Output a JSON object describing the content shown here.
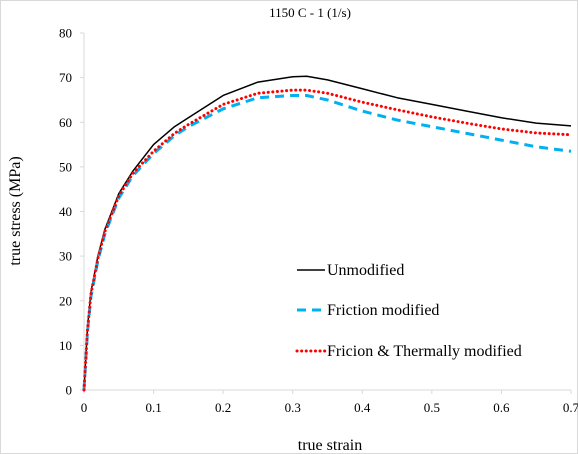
{
  "chart_data": {
    "type": "line",
    "title": "1150 C - 1 (1/s)",
    "xlabel": "true strain",
    "ylabel": "true stress (MPa)",
    "xlim": [
      0,
      0.7
    ],
    "ylim": [
      0,
      80
    ],
    "x_ticks": [
      "0",
      "0.1",
      "0.2",
      "0.3",
      "0.4",
      "0.5",
      "0.6",
      "0.7"
    ],
    "y_ticks": [
      "0",
      "10",
      "20",
      "30",
      "40",
      "50",
      "60",
      "70",
      "80"
    ],
    "grid": false,
    "legend_position": "center-right",
    "series": [
      {
        "name": "Unmodified",
        "style": "solid",
        "color": "#000000",
        "x": [
          0,
          0.005,
          0.01,
          0.02,
          0.03,
          0.05,
          0.07,
          0.1,
          0.13,
          0.15,
          0.2,
          0.25,
          0.3,
          0.32,
          0.35,
          0.4,
          0.45,
          0.5,
          0.55,
          0.6,
          0.65,
          0.7
        ],
        "y": [
          0,
          14,
          22,
          30,
          36,
          44,
          49,
          55,
          59,
          61,
          66,
          69,
          70.2,
          70.3,
          69.5,
          67.5,
          65.5,
          64,
          62.5,
          61,
          59.8,
          59.2
        ]
      },
      {
        "name": "Friction modified",
        "style": "dashed",
        "color": "#00b0f0",
        "x": [
          0,
          0.005,
          0.01,
          0.02,
          0.03,
          0.05,
          0.07,
          0.1,
          0.13,
          0.15,
          0.2,
          0.25,
          0.3,
          0.32,
          0.35,
          0.4,
          0.45,
          0.5,
          0.55,
          0.6,
          0.65,
          0.7
        ],
        "y": [
          0,
          13,
          21,
          29,
          35,
          43,
          48,
          53,
          57,
          59,
          63,
          65.5,
          66,
          66,
          65,
          62.5,
          60.5,
          59,
          57.5,
          56,
          54.5,
          53.5
        ]
      },
      {
        "name": "Fricion & Thermally modified",
        "style": "dotted",
        "color": "#ff0000",
        "x": [
          0,
          0.005,
          0.01,
          0.02,
          0.03,
          0.05,
          0.07,
          0.1,
          0.13,
          0.15,
          0.2,
          0.25,
          0.3,
          0.32,
          0.35,
          0.4,
          0.45,
          0.5,
          0.55,
          0.6,
          0.65,
          0.7
        ],
        "y": [
          0,
          13.5,
          21.5,
          29.5,
          35.5,
          43.5,
          48.5,
          53.5,
          57.5,
          59.5,
          64,
          66.5,
          67.2,
          67.2,
          66.5,
          64.5,
          62.8,
          61.2,
          59.8,
          58.5,
          57.6,
          57.2
        ]
      }
    ]
  }
}
